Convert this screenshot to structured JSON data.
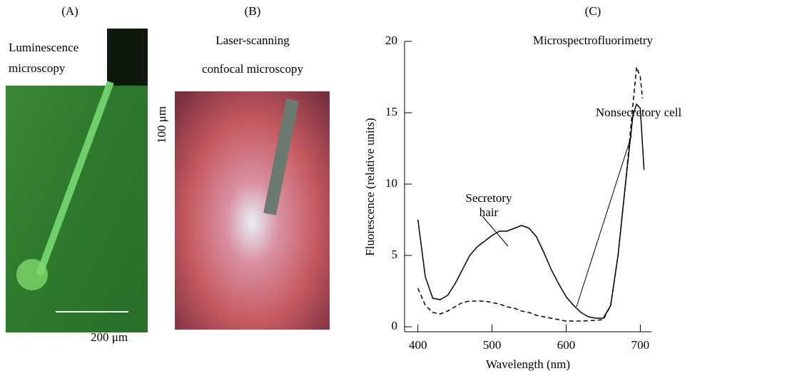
{
  "panels": [
    {
      "label": "(A)",
      "caption_lines": [
        "Luminescence",
        "microscopy"
      ],
      "scale_bar": "200 μm"
    },
    {
      "label": "(B)",
      "caption_lines": [
        "Laser-scanning",
        "confocal microscopy"
      ],
      "scale_bar": "100 μm"
    }
  ],
  "chart_data": {
    "type": "line",
    "label": "(C)",
    "title": "Microspectrofluorimetry",
    "x_label": "Wavelength (nm)",
    "y_label": "Fluorescence (relative units)",
    "xlim": [
      382,
      715
    ],
    "xticks": [
      400,
      500,
      600,
      700
    ],
    "ylim": [
      -0.35,
      20
    ],
    "yticks": [
      0,
      5,
      10,
      15,
      20
    ],
    "series": [
      {
        "name": "Secretory hair",
        "color": "#000000",
        "dash": false,
        "x": [
          400,
          410,
          420,
          430,
          440,
          450,
          460,
          470,
          480,
          490,
          500,
          510,
          520,
          530,
          540,
          550,
          560,
          570,
          580,
          590,
          600,
          610,
          620,
          630,
          640,
          650,
          660,
          670,
          680,
          690,
          695,
          700,
          705
        ],
        "values": [
          7.5,
          3.5,
          2.0,
          1.9,
          2.2,
          3.0,
          4.0,
          5.0,
          5.6,
          6.0,
          6.4,
          6.7,
          6.7,
          6.9,
          7.1,
          6.9,
          6.3,
          5.2,
          4.0,
          3.0,
          2.1,
          1.5,
          1.0,
          0.7,
          0.6,
          0.6,
          1.5,
          5.0,
          10.0,
          14.8,
          15.6,
          15.3,
          11.0
        ]
      },
      {
        "name": "Nonsecretory cell",
        "color": "#000000",
        "dash": true,
        "x": [
          400,
          410,
          420,
          430,
          440,
          450,
          460,
          470,
          480,
          490,
          500,
          510,
          520,
          530,
          540,
          550,
          560,
          570,
          580,
          590,
          600,
          620,
          640,
          650,
          660,
          670,
          680,
          690,
          695,
          700,
          703
        ],
        "values": [
          2.7,
          1.5,
          1.0,
          0.9,
          1.1,
          1.4,
          1.7,
          1.8,
          1.8,
          1.8,
          1.7,
          1.6,
          1.4,
          1.3,
          1.1,
          1.0,
          0.8,
          0.7,
          0.6,
          0.5,
          0.4,
          0.4,
          0.45,
          0.5,
          1.5,
          5.0,
          10.0,
          15.5,
          18.2,
          17.5,
          16.0
        ]
      }
    ]
  }
}
